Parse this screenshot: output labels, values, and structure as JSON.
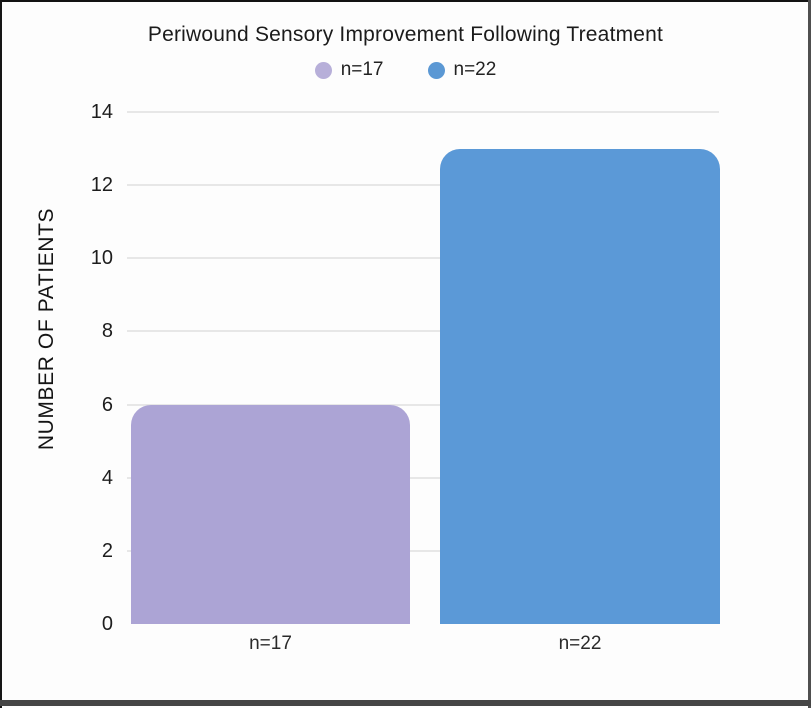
{
  "chart_data": {
    "type": "bar",
    "title": "Periwound Sensory Improvement Following Treatment",
    "categories": [
      "n=17",
      "n=22"
    ],
    "values": [
      6,
      13
    ],
    "bar_colors": [
      "#aca4d5",
      "#5b99d7"
    ],
    "legend": {
      "position": "top",
      "items": [
        {
          "label": "n=17",
          "color": "#b7afd9"
        },
        {
          "label": "n=22",
          "color": "#5b98d4"
        }
      ]
    },
    "xlabel": "",
    "ylabel": "NUMBER OF PATIENTS",
    "ylim": [
      0,
      14
    ],
    "yticks": [
      0,
      2,
      4,
      6,
      8,
      10,
      12,
      14
    ],
    "grid": true,
    "gridline_color": "#e7e7e7",
    "background_color": "#fdfdfd",
    "text_color": "#1d1d1d"
  }
}
